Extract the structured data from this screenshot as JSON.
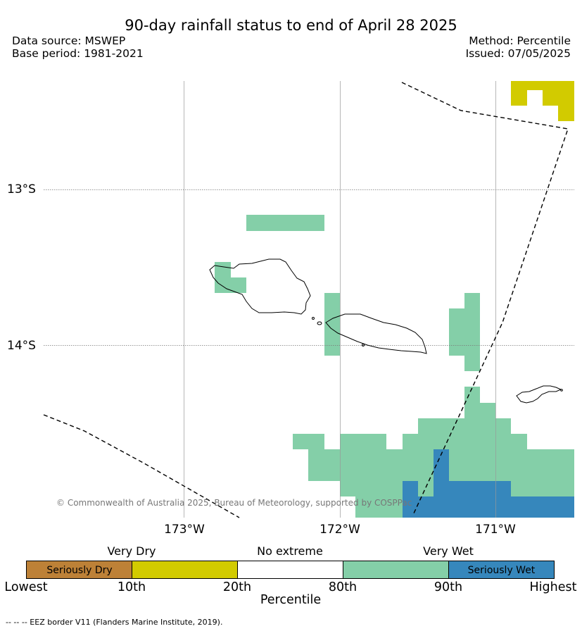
{
  "header": {
    "title": "90-day rainfall status to end of April 28 2025",
    "data_source": "Data source: MSWEP",
    "base_period": "Base period: 1981-2021",
    "method": "Method: Percentile",
    "issued": "Issued: 07/05/2025"
  },
  "map": {
    "lat_labels": [
      "13°S",
      "14°S"
    ],
    "lon_labels": [
      "173°W",
      "172°W",
      "171°W"
    ],
    "copyright": "© Commonwealth of Australia 2025, Bureau of Meteorology, supported by COSPPac",
    "colors": {
      "seriously_dry": "#bd8137",
      "very_dry": "#d2cb00",
      "no_extreme": "#ffffff",
      "very_wet": "#84cfa8",
      "seriously_wet": "#3687bc"
    }
  },
  "legend": {
    "category_labels": [
      "Very Dry",
      "No extreme",
      "Very Wet"
    ],
    "seg_labels": [
      "Seriously Dry",
      "",
      "",
      "",
      "Seriously Wet"
    ],
    "tick_labels": [
      "Lowest",
      "10th",
      "20th",
      "80th",
      "90th",
      "Highest"
    ],
    "title": "Percentile",
    "eez_line": "--  --  -- EEZ border V11 (Flanders Marine Institute, 2019)."
  }
}
